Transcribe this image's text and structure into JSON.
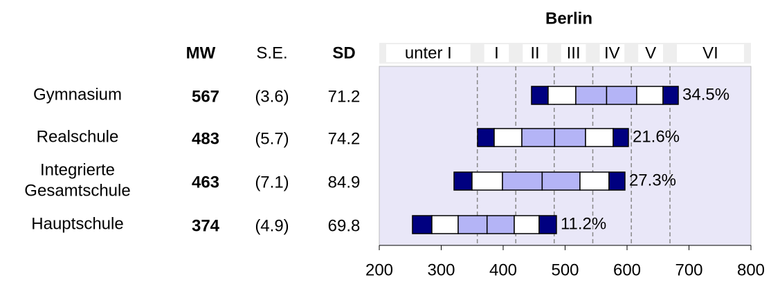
{
  "chart_data": {
    "type": "percentile_bands",
    "title": "Berlin",
    "columns": [
      "MW",
      "S.E.",
      "SD"
    ],
    "levels": [
      "unter I",
      "I",
      "II",
      "III",
      "IV",
      "V",
      "VI"
    ],
    "level_bounds": [
      358.3,
      420.4,
      482.4,
      544.7,
      606.9,
      669.3
    ],
    "xlim": [
      200,
      800
    ],
    "xticks": [
      200,
      300,
      400,
      500,
      600,
      700,
      800
    ],
    "colors": {
      "outer": "#000080",
      "middle": "#ffffff",
      "inner": "#b4b4f6"
    },
    "rows": [
      {
        "label": [
          "Gymnasium"
        ],
        "mw": 567,
        "se": "(3.6)",
        "sd": 71.2,
        "p5": 445.8,
        "p10": 472.6,
        "p25": 517.3,
        "p75": 615.6,
        "p90": 658.1,
        "p95": 682.7,
        "share_label": "34.5%"
      },
      {
        "label": [
          "Realschule"
        ],
        "mw": 483,
        "se": "(5.7)",
        "sd": 74.2,
        "p5": 358.7,
        "p10": 385.5,
        "p25": 430.2,
        "p75": 533.0,
        "p90": 577.7,
        "p95": 602.2,
        "share_label": "21.6%"
      },
      {
        "label": [
          "Integrierte",
          "Gesamtschule"
        ],
        "mw": 463,
        "se": "(7.1)",
        "sd": 84.9,
        "p5": 320.7,
        "p10": 349.7,
        "p25": 398.9,
        "p75": 524.0,
        "p90": 570.9,
        "p95": 596.6,
        "share_label": "27.3%"
      },
      {
        "label": [
          "Hauptschule"
        ],
        "mw": 374,
        "se": "(4.9)",
        "sd": 69.8,
        "p5": 253.6,
        "p10": 284.9,
        "p25": 327.4,
        "p75": 417.9,
        "p90": 458.1,
        "p95": 486.0,
        "share_label": "11.2%"
      }
    ]
  }
}
